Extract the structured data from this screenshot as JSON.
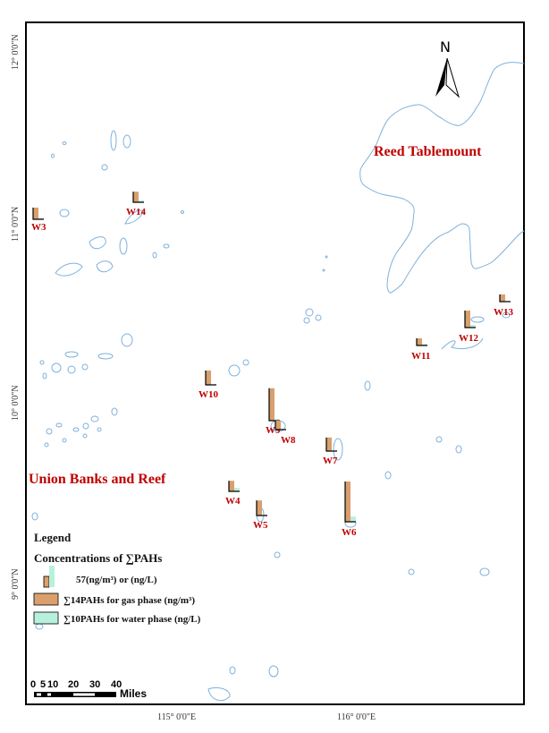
{
  "map": {
    "region_labels": [
      "Reed Tablemount",
      "Union Banks and Reef"
    ],
    "north_arrow": {
      "label": "N",
      "icon": "north-arrow-icon"
    },
    "latitude_labels": [
      "12° 0'0\"N",
      "11° 0'0\"N",
      "10° 0'0\"N",
      "9° 0'0\"N"
    ],
    "longitude_labels": [
      "115° 0'0\"E",
      "116° 0'0\"E"
    ],
    "colors": {
      "gas_phase": "#d9a06e",
      "water_phase": "#b8f0dc",
      "label": "#c00000",
      "outline": "#7fb1dc"
    }
  },
  "stations": [
    {
      "id": "W3",
      "gas": 31,
      "water": 4
    },
    {
      "id": "W14",
      "gas": 28,
      "water": 5
    },
    {
      "id": "W10",
      "gas": 38,
      "water": 1
    },
    {
      "id": "W9",
      "gas": 86,
      "water": 4
    },
    {
      "id": "W8",
      "gas": 24,
      "water": 2
    },
    {
      "id": "W7",
      "gas": 36,
      "water": 2
    },
    {
      "id": "W4",
      "gas": 28,
      "water": 9
    },
    {
      "id": "W5",
      "gas": 40,
      "water": 2
    },
    {
      "id": "W6",
      "gas": 107,
      "water": 14
    },
    {
      "id": "W11",
      "gas": 19,
      "water": 4
    },
    {
      "id": "W12",
      "gas": 45,
      "water": 7
    },
    {
      "id": "W13",
      "gas": 19,
      "water": 1
    }
  ],
  "legend": {
    "title": "Legend",
    "subtitle": "Concentrations of ∑PAHs",
    "scale_value": 57,
    "scale_text": "57(ng/m³) or (ng/L)",
    "gas_label": "∑14PAHs for gas phase (ng/m³)",
    "water_label": "∑10PAHs for water phase (ng/L)"
  },
  "scale_bar": {
    "ticks": [
      "0",
      "5",
      "10",
      "20",
      "30",
      "40"
    ],
    "unit": "Miles"
  }
}
